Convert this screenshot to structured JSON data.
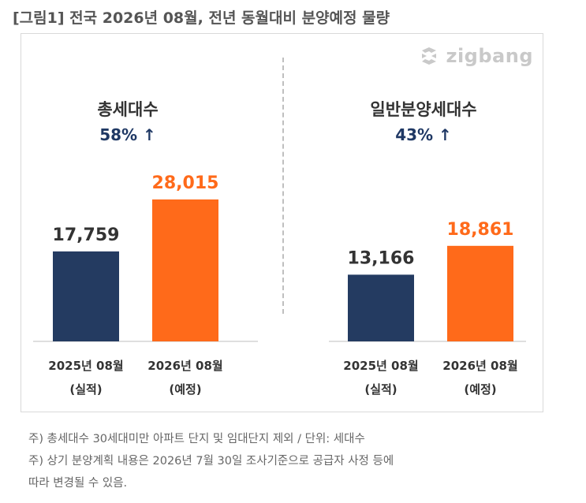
{
  "title": "[그림1] 전국 2026년 08월, 전년 동월대비 분양예정 물량",
  "logo": {
    "text": "zigbang",
    "icon": "zigbang-logo-icon"
  },
  "colors": {
    "series_2025": "#243b61",
    "series_2026": "#ff6a1a",
    "axis": "#bfbfbf"
  },
  "chart_data": [
    {
      "type": "bar",
      "title": "총세대수",
      "change": "58% ↑",
      "categories": [
        [
          "2025년 08월",
          "(실적)"
        ],
        [
          "2026년 08월",
          "(예정)"
        ]
      ],
      "values": [
        17759,
        28015
      ],
      "value_labels": [
        "17,759",
        "28,015"
      ],
      "ylim": [
        0,
        30000
      ]
    },
    {
      "type": "bar",
      "title": "일반분양세대수",
      "change": "43% ↑",
      "categories": [
        [
          "2025년 08월",
          "(실적)"
        ],
        [
          "2026년 08월",
          "(예정)"
        ]
      ],
      "values": [
        13166,
        18861
      ],
      "value_labels": [
        "13,166",
        "18,861"
      ],
      "ylim": [
        0,
        30000
      ]
    }
  ],
  "notes": [
    "주) 총세대수 30세대미만 아파트  단지 및 임대단지 제외 / 단위: 세대수",
    "주) 상기 분양계획 내용은 2026년 7월 30일 조사기준으로 공급자 사정 등에",
    "따라 변경될 수 있음."
  ]
}
